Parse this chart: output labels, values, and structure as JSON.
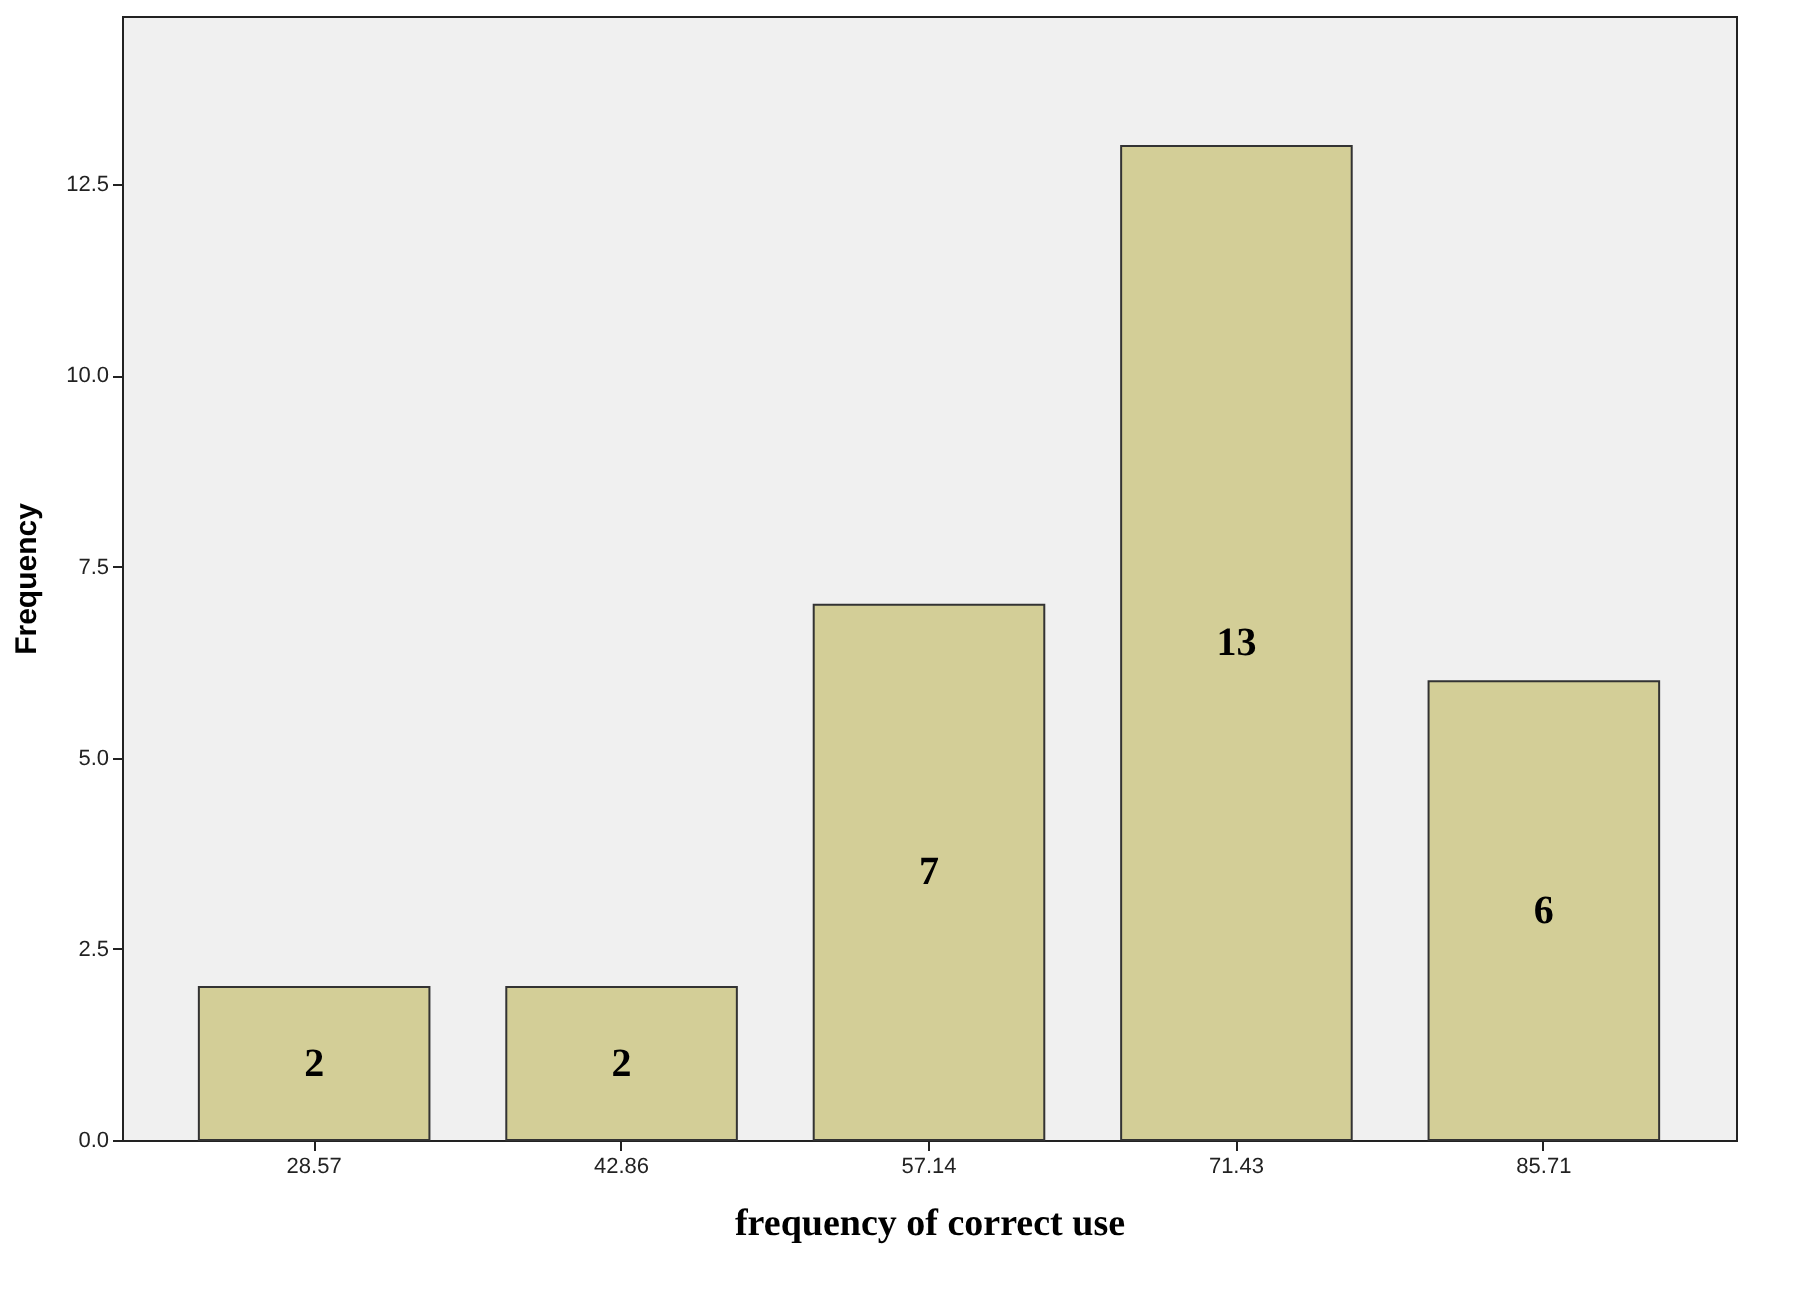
{
  "chart_data": {
    "type": "bar",
    "xlabel": "frequency of correct use",
    "ylabel": "Frequency",
    "categories": [
      "28.57",
      "42.86",
      "57.14",
      "71.43",
      "85.71"
    ],
    "values": [
      2,
      2,
      7,
      13,
      6
    ],
    "color": "#d3ce97",
    "ylim": [
      0,
      14.7
    ],
    "yticks": [
      {
        "value": 0,
        "label": "0.0"
      },
      {
        "value": 2.5,
        "label": "2.5"
      },
      {
        "value": 5,
        "label": "5.0"
      },
      {
        "value": 7.5,
        "label": "7.5"
      },
      {
        "value": 10,
        "label": "10.0"
      },
      {
        "value": 12.5,
        "label": "12.5"
      }
    ],
    "data_labels": true,
    "grid": false
  }
}
